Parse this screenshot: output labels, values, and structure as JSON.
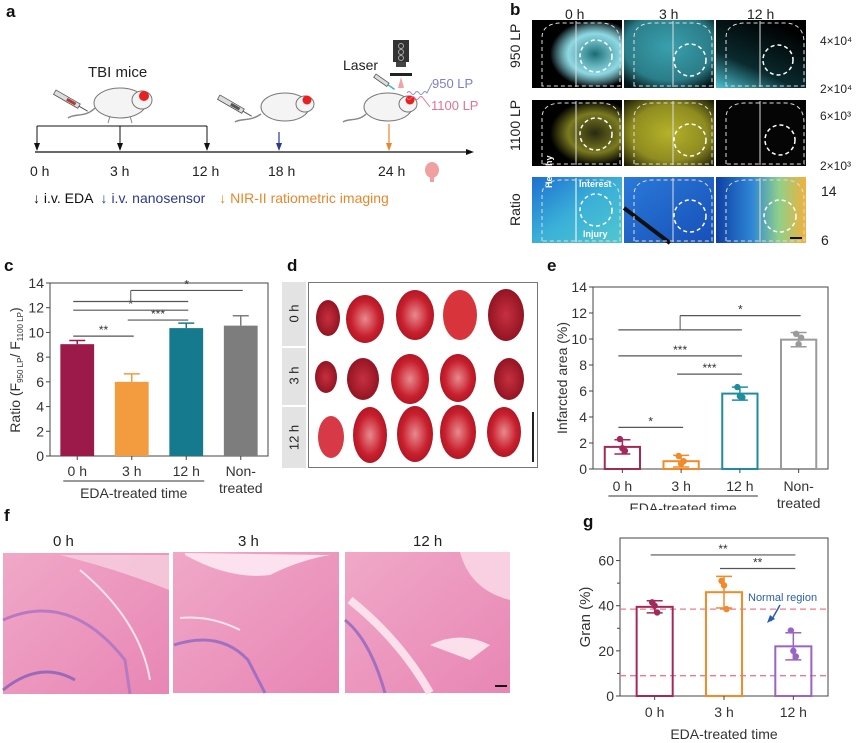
{
  "panels": {
    "a": {
      "label": "a",
      "group_label": "TBI mice",
      "laser_label": "Laser",
      "camera_label": "CCD",
      "filter_950": "950 LP",
      "filter_1100": "1100 LP",
      "timeline": [
        {
          "label": "0 h",
          "event": "eda"
        },
        {
          "label": "3 h",
          "event": "eda"
        },
        {
          "label": "12 h",
          "event": "eda"
        },
        {
          "label": "18 h",
          "event": "nanosensor"
        },
        {
          "label": "24 h",
          "event": "imaging"
        }
      ],
      "legend": [
        {
          "label": "i.v. EDA",
          "color": "#111111"
        },
        {
          "label": "i.v. nanosensor",
          "color": "#2b3a8f"
        },
        {
          "label": "NIR-II ratiometric imaging",
          "color": "#e8872a"
        }
      ]
    },
    "b": {
      "label": "b",
      "columns": [
        "0 h",
        "3 h",
        "12 h"
      ],
      "rows": [
        {
          "label": "950 LP",
          "colorbar_max": "4×10⁴",
          "colorbar_min": "2×10⁴",
          "color": "#5ec8d6"
        },
        {
          "label": "1100 LP",
          "colorbar_max": "6×10³",
          "colorbar_min": "2×10³",
          "color": "#e6e23a"
        },
        {
          "label": "Ratio",
          "colorbar_max": "14",
          "colorbar_min": "6",
          "color": "jet"
        }
      ],
      "annotations": {
        "healthy": "Healthy",
        "interest": "Interest",
        "injury": "Injury"
      }
    },
    "d": {
      "label": "d",
      "rows": [
        "0 h",
        "3 h",
        "12 h"
      ]
    },
    "f": {
      "label": "f",
      "columns": [
        "0 h",
        "3 h",
        "12 h"
      ]
    }
  },
  "chart_data": [
    {
      "id": "c",
      "label": "c",
      "type": "bar",
      "categories": [
        "0 h",
        "3 h",
        "12 h",
        "Non-treated"
      ],
      "category_lines": [
        [
          "0 h"
        ],
        [
          "3 h"
        ],
        [
          "12 h"
        ],
        [
          "Non-",
          "treated"
        ]
      ],
      "values": [
        9.05,
        6.0,
        10.35,
        10.55
      ],
      "errors": [
        0.3,
        0.65,
        0.4,
        0.8
      ],
      "colors": [
        "#9b1a4a",
        "#f29b3f",
        "#167a8e",
        "#7d7d7d"
      ],
      "ylabel": "Ratio (F950 LP / F1100 LP)",
      "ylabel_main": "Ratio (F",
      "ylabel_sub1": "950 LP",
      "ylabel_mid": "/ F",
      "ylabel_sub2": "1100 LP",
      "ylabel_end": ")",
      "group_label": "EDA-treated time",
      "ylim": [
        0,
        14
      ],
      "yticks": [
        0,
        2,
        4,
        6,
        8,
        10,
        12,
        14
      ],
      "significance": [
        {
          "from": 0,
          "to": 1,
          "label": "**",
          "y": 9.7
        },
        {
          "from": 1,
          "to": 2,
          "label": "***",
          "y": 11.0
        },
        {
          "from": 0,
          "to": 2,
          "label": "*",
          "y": 11.8
        },
        {
          "from": 0,
          "to": 2,
          "label": "",
          "y": 12.5,
          "group": true
        },
        {
          "from": "group02",
          "to": 3,
          "label": "*",
          "y": 13.4
        }
      ]
    },
    {
      "id": "e",
      "label": "e",
      "type": "bar",
      "categories": [
        "0 h",
        "3 h",
        "12 h",
        "Non-treated"
      ],
      "category_lines": [
        [
          "0 h"
        ],
        [
          "3 h"
        ],
        [
          "12 h"
        ],
        [
          "Non-",
          "treated"
        ]
      ],
      "values": [
        1.7,
        0.6,
        5.8,
        9.95
      ],
      "errors": [
        0.55,
        0.45,
        0.5,
        0.55
      ],
      "points": [
        [
          2.3,
          1.6,
          1.4
        ],
        [
          1.0,
          0.4,
          0.6
        ],
        [
          6.3,
          5.6,
          5.5
        ],
        [
          10.4,
          9.6,
          10.1
        ]
      ],
      "colors": [
        "#a3295a",
        "#f28a2a",
        "#1e8e9e",
        "#9a9a9a"
      ],
      "ylabel": "Infarcted area (%)",
      "group_label": "EDA-treated time",
      "ylim": [
        0,
        14
      ],
      "yticks": [
        0,
        2,
        4,
        6,
        8,
        10,
        12,
        14
      ],
      "significance": [
        {
          "from": 0,
          "to": 1,
          "label": "*",
          "y": 3.2
        },
        {
          "from": 1,
          "to": 2,
          "label": "***",
          "y": 7.3
        },
        {
          "from": 0,
          "to": 2,
          "label": "***",
          "y": 8.7
        },
        {
          "from": 0,
          "to": 2,
          "label": "",
          "y": 10.7,
          "group": true
        },
        {
          "from": "group02",
          "to": 3,
          "label": "*",
          "y": 11.8
        }
      ]
    },
    {
      "id": "g",
      "label": "g",
      "type": "bar",
      "categories": [
        "0 h",
        "3 h",
        "12 h"
      ],
      "category_lines": [
        [
          "0 h"
        ],
        [
          "3 h"
        ],
        [
          "12 h"
        ]
      ],
      "values": [
        39.5,
        46.0,
        22.0
      ],
      "errors": [
        2.7,
        7.0,
        6.0
      ],
      "points": [
        [
          41.5,
          40.0,
          37.0
        ],
        [
          51.0,
          49.0,
          38.5
        ],
        [
          29.0,
          20.0,
          17.5
        ]
      ],
      "colors": [
        "#a3295a",
        "#f28a2a",
        "#9b63c4"
      ],
      "ylabel": "Gran (%)",
      "xlabel": "EDA-treated time",
      "ylim": [
        0,
        70
      ],
      "yticks": [
        0,
        20,
        40,
        60
      ],
      "minor_yticks": [
        10,
        30,
        50
      ],
      "reference_lines": [
        38.5,
        9.0
      ],
      "reference_color": "#f07a8a",
      "annotation": {
        "text": "Normal region",
        "color": "#2a5db0"
      },
      "significance": [
        {
          "from": 0,
          "to": 2,
          "label": "**",
          "y": 62.5
        },
        {
          "from": 1,
          "to": 2,
          "label": "**",
          "y": 56.5
        }
      ]
    }
  ]
}
